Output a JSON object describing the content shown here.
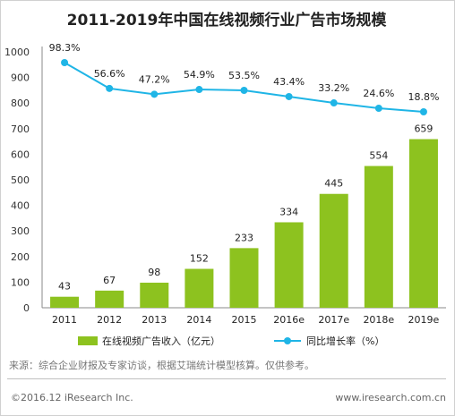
{
  "title": "2011-2019年中国在线视频行业广告市场规模",
  "source": "来源：综合企业财报及专家访谈，根据艾瑞统计模型核算。仅供参考。",
  "copyright": "©2016.12 iResearch Inc.",
  "website": "www.iresearch.com.cn",
  "chart_data": {
    "type": "bar",
    "categories": [
      "2011",
      "2012",
      "2013",
      "2014",
      "2015",
      "2016e",
      "2017e",
      "2018e",
      "2019e"
    ],
    "series": [
      {
        "name": "在线视频广告收入（亿元）",
        "type": "bar",
        "color": "#8dc21f",
        "values": [
          43,
          67,
          98,
          152,
          233,
          334,
          445,
          554,
          659
        ]
      },
      {
        "name": "同比增长率（%）",
        "type": "line",
        "color": "#1fb5e6",
        "values": [
          98.3,
          56.6,
          47.2,
          54.9,
          53.5,
          43.4,
          33.2,
          24.6,
          18.8
        ],
        "labels": [
          "98.3%",
          "56.6%",
          "47.2%",
          "54.9%",
          "53.5%",
          "43.4%",
          "33.2%",
          "24.6%",
          "18.8%"
        ]
      }
    ],
    "yticks": [
      "0",
      "100",
      "200",
      "300",
      "400",
      "500",
      "600",
      "700",
      "800",
      "900",
      "1000"
    ],
    "ylim": [
      0,
      1000
    ],
    "legend_position": "bottom"
  }
}
